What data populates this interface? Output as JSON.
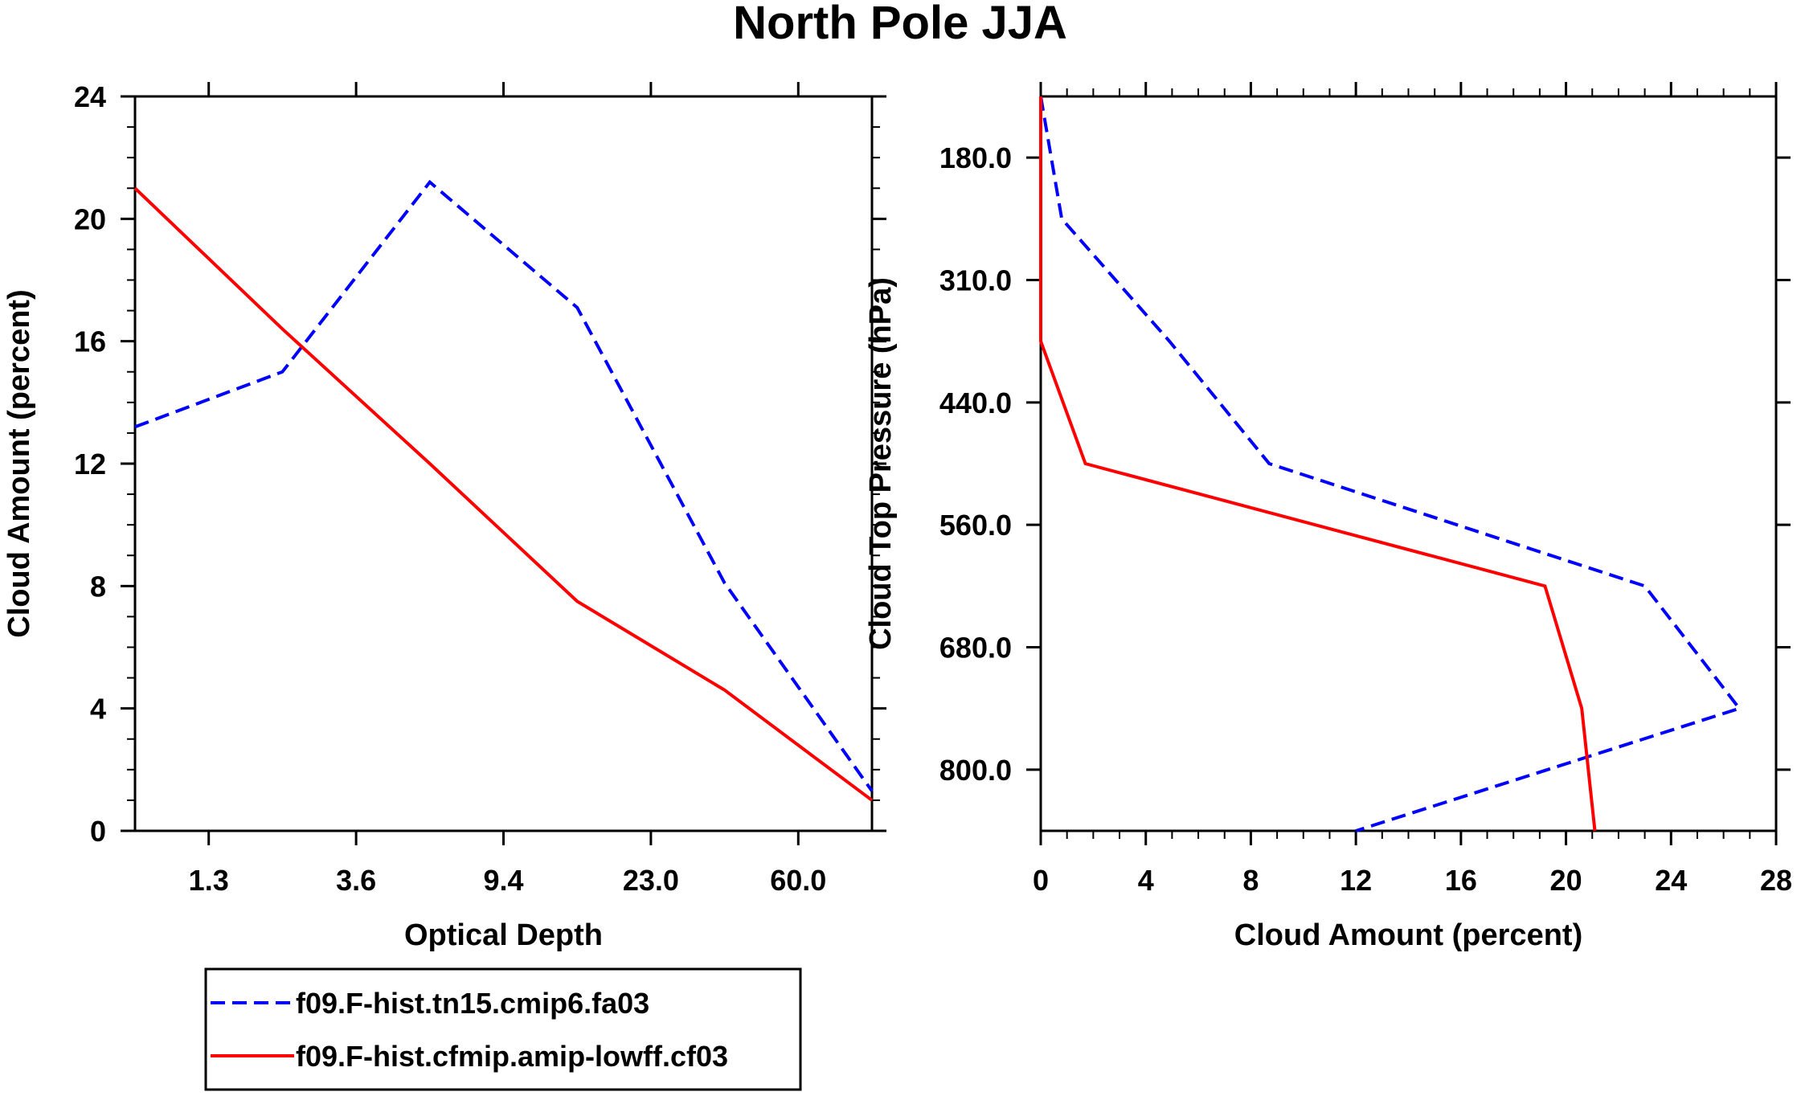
{
  "title": "North Pole JJA",
  "chart_data": [
    {
      "type": "line",
      "name": "optical-depth-panel",
      "xlabel": "Optical Depth",
      "ylabel": "Cloud Amount (percent)",
      "ylim": [
        0,
        24
      ],
      "xlim": [
        0,
        10
      ],
      "yticks": [
        0,
        4,
        8,
        12,
        16,
        20,
        24
      ],
      "xtick_positions": [
        1,
        3,
        5,
        7,
        9
      ],
      "xtick_labels": [
        "1.3",
        "3.6",
        "9.4",
        "23.0",
        "60.0"
      ],
      "x": [
        0,
        2,
        4,
        6,
        8,
        10
      ],
      "series": [
        {
          "name": "f09.F-hist.tn15.cmip6.fa03",
          "color": "#0000ff",
          "dash": "dashed",
          "values": [
            13.2,
            15.0,
            21.2,
            17.1,
            8.1,
            1.3
          ]
        },
        {
          "name": "f09.F-hist.cfmip.amip-lowff.cf03",
          "color": "#ff0000",
          "dash": "solid",
          "values": [
            21.0,
            16.4,
            12.0,
            7.5,
            4.6,
            1.0
          ]
        }
      ]
    },
    {
      "type": "line",
      "name": "pressure-panel",
      "orientation": "horizontal",
      "xlabel": "Cloud Amount (percent)",
      "ylabel": "Cloud Top Pressure (hPa)",
      "xlim": [
        0,
        28
      ],
      "xticks": [
        0,
        4,
        8,
        12,
        16,
        20,
        24,
        28
      ],
      "ylim": [
        0,
        12
      ],
      "ytick_positions": [
        1,
        3,
        5,
        7,
        9,
        11
      ],
      "ytick_labels": [
        "180.0",
        "310.0",
        "440.0",
        "560.0",
        "680.0",
        "800.0"
      ],
      "levels": [
        0,
        2,
        4,
        6,
        8,
        10,
        12
      ],
      "series": [
        {
          "name": "f09.F-hist.tn15.cmip6.fa03",
          "color": "#0000ff",
          "dash": "dashed",
          "values": [
            0.0,
            0.8,
            4.9,
            8.7,
            23.0,
            26.6,
            12.0
          ]
        },
        {
          "name": "f09.F-hist.cfmip.amip-lowff.cf03",
          "color": "#ff0000",
          "dash": "solid",
          "values": [
            0.0,
            0.0,
            0.0,
            1.7,
            19.2,
            20.6,
            21.1
          ]
        }
      ]
    }
  ],
  "legend": [
    {
      "label": "f09.F-hist.tn15.cmip6.fa03",
      "color": "#0000ff",
      "dash": "dashed"
    },
    {
      "label": "f09.F-hist.cfmip.amip-lowff.cf03",
      "color": "#ff0000",
      "dash": "solid"
    }
  ]
}
